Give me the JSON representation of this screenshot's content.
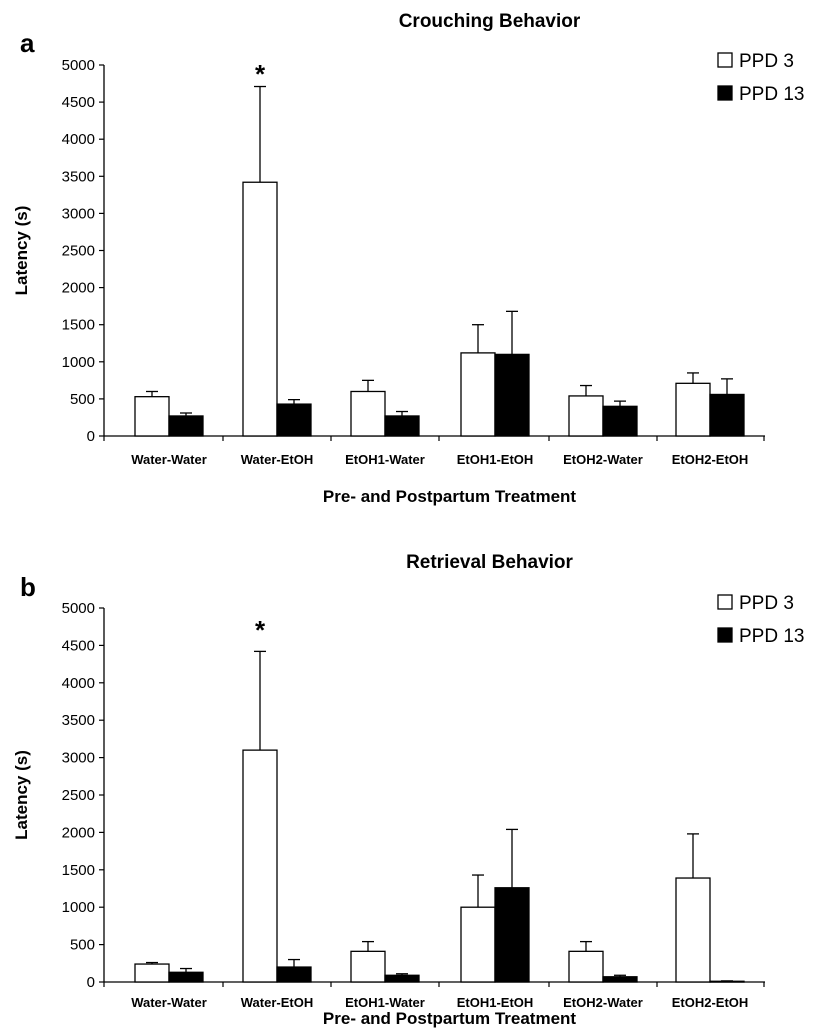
{
  "chart_data": [
    {
      "type": "bar",
      "panel_label": "a",
      "title": "Crouching Behavior",
      "xlabel": "Pre- and Postpartum Treatment",
      "ylabel": "Latency (s)",
      "ylim": [
        0,
        5000
      ],
      "yticks": [
        0,
        500,
        1000,
        1500,
        2000,
        2500,
        3000,
        3500,
        4000,
        4500,
        5000
      ],
      "categories": [
        "Water-Water",
        "Water-EtOH",
        "EtOH1-Water",
        "EtOH1-EtOH",
        "EtOH2-Water",
        "EtOH2-EtOH"
      ],
      "series": [
        {
          "name": "PPD 3",
          "color": "#ffffff",
          "values": [
            530,
            3420,
            600,
            1120,
            540,
            710
          ],
          "errors": [
            70,
            1290,
            150,
            380,
            140,
            140
          ]
        },
        {
          "name": "PPD 13",
          "color": "#000000",
          "values": [
            270,
            430,
            270,
            1100,
            400,
            560
          ],
          "errors": [
            40,
            60,
            60,
            580,
            70,
            210
          ]
        }
      ],
      "annotations": [
        {
          "text": "*",
          "category": "Water-EtOH"
        }
      ],
      "grid": false,
      "legend": "top-right"
    },
    {
      "type": "bar",
      "panel_label": "b",
      "title": "Retrieval Behavior",
      "xlabel": "Pre- and Postpartum Treatment",
      "ylabel": "Latency (s)",
      "ylim": [
        0,
        5000
      ],
      "yticks": [
        0,
        500,
        1000,
        1500,
        2000,
        2500,
        3000,
        3500,
        4000,
        4500,
        5000
      ],
      "categories": [
        "Water-Water",
        "Water-EtOH",
        "EtOH1-Water",
        "EtOH1-EtOH",
        "EtOH2-Water",
        "EtOH2-EtOH"
      ],
      "series": [
        {
          "name": "PPD 3",
          "color": "#ffffff",
          "values": [
            240,
            3100,
            410,
            1000,
            410,
            1390
          ],
          "errors": [
            20,
            1320,
            130,
            430,
            130,
            590
          ]
        },
        {
          "name": "PPD 13",
          "color": "#000000",
          "values": [
            130,
            200,
            90,
            1260,
            70,
            10
          ],
          "errors": [
            50,
            100,
            20,
            780,
            20,
            5
          ]
        }
      ],
      "annotations": [
        {
          "text": "*",
          "category": "Water-EtOH"
        }
      ],
      "grid": false,
      "legend": "top-right"
    }
  ]
}
